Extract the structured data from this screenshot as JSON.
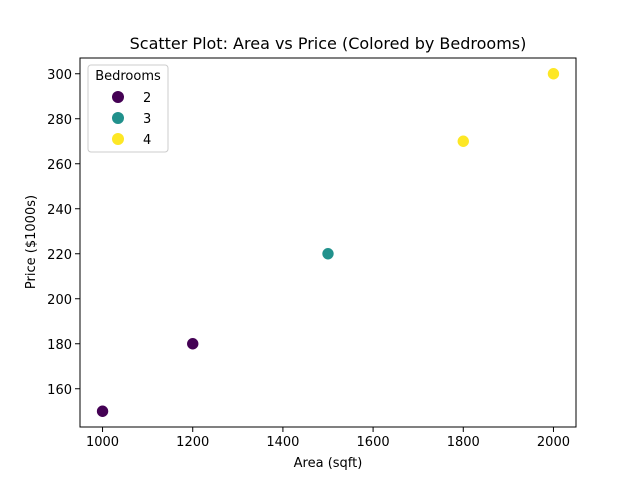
{
  "chart_data": {
    "type": "scatter",
    "title": "Scatter Plot: Area vs Price (Colored by Bedrooms)",
    "xlabel": "Area (sqft)",
    "ylabel": "Price ($1000s)",
    "xlim": [
      950,
      2050
    ],
    "ylim": [
      143,
      307
    ],
    "xticks": [
      1000,
      1200,
      1400,
      1600,
      1800,
      2000
    ],
    "yticks": [
      160,
      180,
      200,
      220,
      240,
      260,
      280,
      300
    ],
    "grid": false,
    "legend": {
      "title": "Bedrooms",
      "placement": "top-left",
      "entries": [
        {
          "label": "2",
          "color": "#440154"
        },
        {
          "label": "3",
          "color": "#21918c"
        },
        {
          "label": "4",
          "color": "#fde725"
        }
      ]
    },
    "points": [
      {
        "x": 1000,
        "y": 150,
        "bedrooms": 2,
        "color": "#440154"
      },
      {
        "x": 1200,
        "y": 180,
        "bedrooms": 2,
        "color": "#440154"
      },
      {
        "x": 1500,
        "y": 220,
        "bedrooms": 3,
        "color": "#21918c"
      },
      {
        "x": 1800,
        "y": 270,
        "bedrooms": 4,
        "color": "#fde725"
      },
      {
        "x": 2000,
        "y": 300,
        "bedrooms": 4,
        "color": "#fde725"
      }
    ]
  }
}
